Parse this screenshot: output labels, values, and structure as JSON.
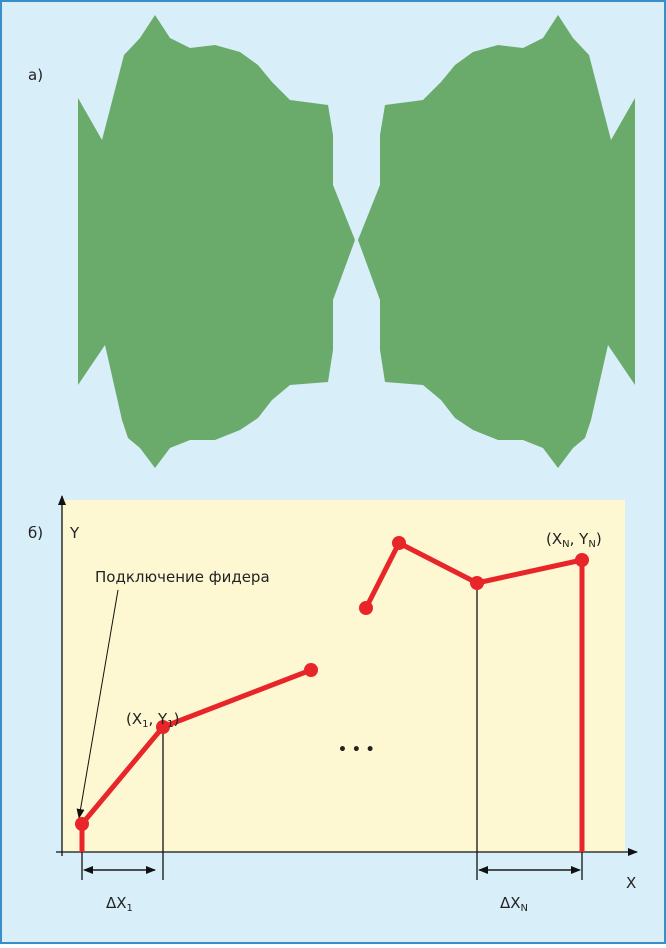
{
  "panel_a": {
    "label": "а)"
  },
  "panel_b": {
    "label": "б)",
    "y_axis": "Y",
    "x_axis": "X",
    "feeder_note": "Подключение фидера",
    "ellipsis": "• • •",
    "point_first": [
      "(X",
      "1",
      ", Y",
      "1",
      ")"
    ],
    "point_last": [
      "(X",
      "N",
      ", Y",
      "N",
      ")"
    ],
    "delta_first": [
      "ΔX",
      "1"
    ],
    "delta_last": [
      "ΔX",
      "N"
    ]
  }
}
